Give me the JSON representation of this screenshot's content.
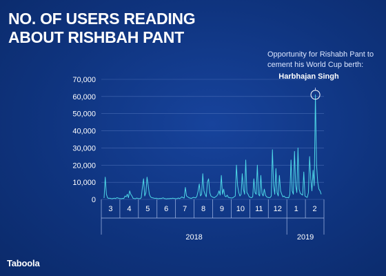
{
  "title": {
    "line1": "NO. OF USERS READING",
    "line2": "ABOUT RISHBAH PANT"
  },
  "annotation": {
    "line1": "Opportunity for Rishabh Pant to",
    "line2": "cement his World Cup berth:",
    "author": "Harbhajan Singh"
  },
  "brand": "Taboola",
  "colors": {
    "line": "#4fd8e8",
    "grid": "#5d7fc4",
    "text": "#ffffff"
  },
  "chart_data": {
    "type": "line",
    "title": "NO. OF USERS READING ABOUT RISHBAH PANT",
    "ylim": [
      0,
      70000
    ],
    "yticks": [
      0,
      10000,
      20000,
      30000,
      40000,
      50000,
      60000,
      70000
    ],
    "ytick_labels": [
      "0",
      "10,000",
      "20,000",
      "30,000",
      "40,000",
      "50,000",
      "60,000",
      "70,000"
    ],
    "months": [
      "3",
      "4",
      "5",
      "6",
      "7",
      "8",
      "9",
      "10",
      "11",
      "12",
      "1",
      "2"
    ],
    "years": [
      "2018",
      "2019"
    ],
    "series": [
      {
        "values": [
          800,
          13000,
          3000,
          900,
          600,
          700,
          500,
          400,
          600,
          700,
          500,
          1000,
          800,
          600,
          500,
          400,
          600,
          500,
          2000,
          1500,
          3000,
          1000,
          5000,
          3000,
          2000,
          600,
          500,
          400,
          800,
          600,
          500,
          400,
          1000,
          7000,
          12000,
          2000,
          4000,
          13000,
          8000,
          3000,
          1500,
          1000,
          900,
          700,
          600,
          700,
          500,
          400,
          600,
          500,
          700,
          900,
          500,
          400,
          300,
          500,
          400,
          600,
          500,
          700,
          600,
          500,
          400,
          500,
          800,
          500,
          900,
          1500,
          1000,
          800,
          7000,
          2000,
          1500,
          1000,
          800,
          600,
          900,
          1200,
          1000,
          900,
          2000,
          5000,
          9000,
          2000,
          3000,
          15000,
          5000,
          3000,
          1500,
          10000,
          12000,
          4000,
          2000,
          1500,
          1200,
          1000,
          1500,
          2000,
          3000,
          5000,
          2500,
          14000,
          3000,
          6000,
          2000,
          1500,
          2500,
          1200,
          1000,
          900,
          800,
          1000,
          1500,
          2000,
          20000,
          8000,
          4000,
          2000,
          3000,
          15000,
          6000,
          3000,
          23000,
          4000,
          3000,
          1500,
          1200,
          1000,
          1500,
          12000,
          4000,
          3000,
          20000,
          3000,
          2000,
          14000,
          3500,
          2000,
          6000,
          2500,
          1500,
          1200,
          1000,
          1100,
          2000,
          29000,
          8000,
          3000,
          18000,
          4000,
          2000,
          14000,
          5000,
          3000,
          1500,
          2000,
          1200,
          1000,
          1100,
          900,
          3000,
          23000,
          5000,
          3000,
          28000,
          8000,
          4000,
          30000,
          6000,
          3500,
          3000,
          2500,
          16000,
          2000,
          1500,
          1200,
          4000,
          25000,
          12000,
          5000,
          17000,
          8000,
          61000,
          20000,
          10000,
          6000,
          5000,
          3000
        ]
      }
    ],
    "annotation": "Opportunity for Rishabh Pant to cement his World Cup berth: Harbhajan Singh",
    "grid": true
  }
}
